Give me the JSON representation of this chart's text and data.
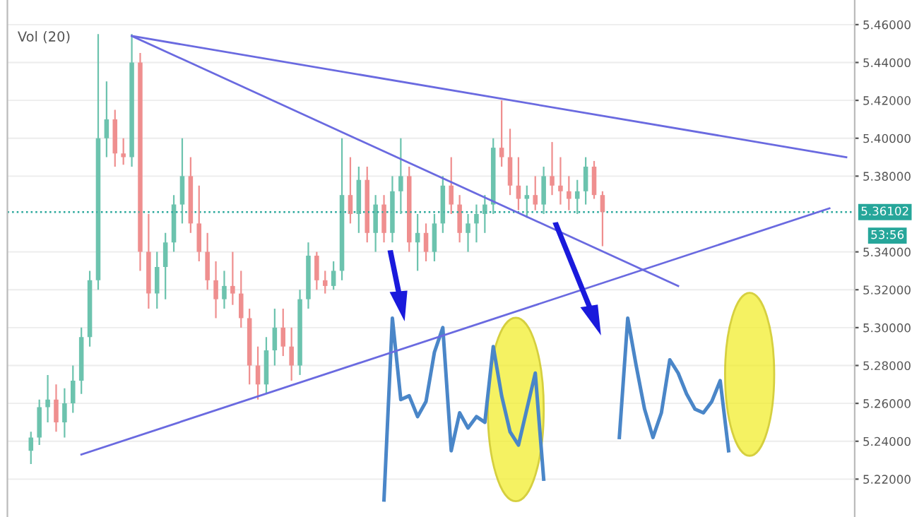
{
  "chart_data": {
    "type": "candlestick",
    "categories": [
      null,
      null,
      null,
      null,
      null,
      null,
      null,
      null,
      null,
      null,
      null,
      null,
      null,
      null,
      null,
      null,
      null,
      null,
      null,
      null,
      null,
      null,
      null,
      null,
      null,
      null,
      null,
      null,
      null,
      null,
      null,
      null,
      null,
      null,
      null,
      null,
      null,
      null,
      null,
      null,
      null,
      null,
      null,
      null,
      null,
      null,
      null,
      null,
      null,
      null,
      null,
      null,
      null,
      null,
      null,
      null,
      null,
      null,
      null,
      null,
      null,
      null,
      null,
      null,
      null,
      null,
      null,
      null,
      null,
      null,
      null,
      null,
      null,
      null,
      null,
      null,
      null,
      null,
      null,
      null,
      null,
      null,
      null,
      null,
      null,
      null,
      null,
      null,
      null,
      null,
      null,
      null,
      null,
      null,
      null,
      null,
      null,
      null,
      null
    ],
    "ohlc": [
      [
        5.235,
        5.245,
        5.228,
        5.242
      ],
      [
        5.242,
        5.262,
        5.238,
        5.258
      ],
      [
        5.258,
        5.275,
        5.25,
        5.262
      ],
      [
        5.262,
        5.27,
        5.245,
        5.25
      ],
      [
        5.25,
        5.268,
        5.242,
        5.26
      ],
      [
        5.26,
        5.28,
        5.255,
        5.272
      ],
      [
        5.272,
        5.3,
        5.265,
        5.295
      ],
      [
        5.295,
        5.33,
        5.29,
        5.325
      ],
      [
        5.325,
        5.455,
        5.32,
        5.4
      ],
      [
        5.4,
        5.43,
        5.39,
        5.41
      ],
      [
        5.41,
        5.415,
        5.385,
        5.392
      ],
      [
        5.392,
        5.4,
        5.386,
        5.39
      ],
      [
        5.39,
        5.455,
        5.385,
        5.44
      ],
      [
        5.44,
        5.445,
        5.33,
        5.34
      ],
      [
        5.34,
        5.36,
        5.31,
        5.318
      ],
      [
        5.318,
        5.34,
        5.31,
        5.332
      ],
      [
        5.332,
        5.35,
        5.315,
        5.345
      ],
      [
        5.345,
        5.37,
        5.34,
        5.365
      ],
      [
        5.365,
        5.4,
        5.355,
        5.38
      ],
      [
        5.38,
        5.39,
        5.35,
        5.355
      ],
      [
        5.355,
        5.375,
        5.335,
        5.34
      ],
      [
        5.34,
        5.35,
        5.32,
        5.325
      ],
      [
        5.325,
        5.335,
        5.305,
        5.315
      ],
      [
        5.315,
        5.33,
        5.31,
        5.322
      ],
      [
        5.322,
        5.34,
        5.312,
        5.318
      ],
      [
        5.318,
        5.33,
        5.3,
        5.305
      ],
      [
        5.305,
        5.31,
        5.27,
        5.28
      ],
      [
        5.28,
        5.29,
        5.262,
        5.27
      ],
      [
        5.27,
        5.295,
        5.265,
        5.288
      ],
      [
        5.288,
        5.31,
        5.28,
        5.3
      ],
      [
        5.3,
        5.31,
        5.285,
        5.29
      ],
      [
        5.29,
        5.3,
        5.272,
        5.28
      ],
      [
        5.28,
        5.32,
        5.275,
        5.315
      ],
      [
        5.315,
        5.345,
        5.31,
        5.338
      ],
      [
        5.338,
        5.34,
        5.32,
        5.325
      ],
      [
        5.325,
        5.33,
        5.318,
        5.322
      ],
      [
        5.322,
        5.335,
        5.32,
        5.33
      ],
      [
        5.33,
        5.4,
        5.325,
        5.37
      ],
      [
        5.37,
        5.39,
        5.355,
        5.36
      ],
      [
        5.36,
        5.385,
        5.35,
        5.378
      ],
      [
        5.378,
        5.385,
        5.345,
        5.35
      ],
      [
        5.35,
        5.37,
        5.34,
        5.365
      ],
      [
        5.365,
        5.37,
        5.345,
        5.35
      ],
      [
        5.35,
        5.38,
        5.345,
        5.372
      ],
      [
        5.372,
        5.4,
        5.36,
        5.38
      ],
      [
        5.38,
        5.385,
        5.34,
        5.345
      ],
      [
        5.345,
        5.36,
        5.33,
        5.35
      ],
      [
        5.35,
        5.355,
        5.335,
        5.34
      ],
      [
        5.34,
        5.36,
        5.335,
        5.355
      ],
      [
        5.355,
        5.38,
        5.35,
        5.375
      ],
      [
        5.375,
        5.39,
        5.36,
        5.365
      ],
      [
        5.365,
        5.37,
        5.345,
        5.35
      ],
      [
        5.35,
        5.36,
        5.34,
        5.355
      ],
      [
        5.355,
        5.365,
        5.345,
        5.36
      ],
      [
        5.36,
        5.37,
        5.35,
        5.365
      ],
      [
        5.365,
        5.4,
        5.36,
        5.395
      ],
      [
        5.395,
        5.42,
        5.385,
        5.39
      ],
      [
        5.39,
        5.405,
        5.37,
        5.375
      ],
      [
        5.375,
        5.39,
        5.362,
        5.368
      ],
      [
        5.368,
        5.375,
        5.358,
        5.37
      ],
      [
        5.37,
        5.38,
        5.362,
        5.365
      ],
      [
        5.365,
        5.385,
        5.36,
        5.38
      ],
      [
        5.38,
        5.398,
        5.37,
        5.375
      ],
      [
        5.375,
        5.39,
        5.365,
        5.372
      ],
      [
        5.372,
        5.38,
        5.362,
        5.368
      ],
      [
        5.368,
        5.378,
        5.36,
        5.372
      ],
      [
        5.372,
        5.39,
        5.365,
        5.385
      ],
      [
        5.385,
        5.388,
        5.368,
        5.37
      ],
      [
        5.37,
        5.372,
        5.343,
        5.361
      ],
      null,
      null,
      null,
      null,
      null,
      null,
      null,
      null,
      null,
      null,
      null,
      null,
      null,
      null,
      null,
      null,
      null,
      null,
      null,
      null,
      null,
      null,
      null,
      null,
      null,
      null,
      null,
      null,
      null,
      null
    ],
    "series": [
      {
        "type": "line",
        "color": "#4a86c8",
        "values": [
          null,
          null,
          null,
          null,
          null,
          null,
          null,
          null,
          null,
          null,
          null,
          null,
          null,
          null,
          null,
          null,
          null,
          null,
          null,
          null,
          null,
          null,
          null,
          null,
          null,
          null,
          null,
          null,
          null,
          null,
          null,
          null,
          null,
          null,
          null,
          null,
          null,
          null,
          null,
          null,
          null,
          null,
          5.209,
          5.305,
          5.262,
          5.264,
          5.253,
          5.261,
          5.287,
          5.3,
          5.235,
          5.255,
          5.247,
          5.253,
          5.25,
          5.29,
          5.264,
          5.245,
          5.238,
          5.257,
          5.276,
          5.22,
          null,
          null,
          null,
          null,
          null,
          null,
          null,
          null,
          null,
          null,
          null,
          null,
          null,
          null,
          null,
          null,
          null,
          null,
          null,
          null,
          null,
          null,
          null,
          null,
          null,
          null,
          null,
          null,
          null,
          null,
          null,
          null,
          null,
          null,
          null,
          null,
          null
        ]
      },
      {
        "type": "line",
        "color": "#4a86c8",
        "values": [
          null,
          null,
          null,
          null,
          null,
          null,
          null,
          null,
          null,
          null,
          null,
          null,
          null,
          null,
          null,
          null,
          null,
          null,
          null,
          null,
          null,
          null,
          null,
          null,
          null,
          null,
          null,
          null,
          null,
          null,
          null,
          null,
          null,
          null,
          null,
          null,
          null,
          null,
          null,
          null,
          null,
          null,
          null,
          null,
          null,
          null,
          null,
          null,
          null,
          null,
          null,
          null,
          null,
          null,
          null,
          null,
          null,
          null,
          null,
          null,
          null,
          null,
          null,
          null,
          null,
          null,
          null,
          null,
          null,
          null,
          5.242,
          5.305,
          5.28,
          5.257,
          5.242,
          5.255,
          5.283,
          5.276,
          5.265,
          5.257,
          5.255,
          5.261,
          5.272,
          5.235,
          null,
          null,
          null,
          null,
          null,
          null,
          null,
          null,
          null,
          null,
          null,
          null,
          null,
          null,
          null
        ]
      },
      {
        "type": "line",
        "color": "#6a6ae0",
        "values": [
          null,
          null,
          null,
          null,
          null,
          null,
          null,
          null,
          null,
          null,
          null,
          null,
          5.454,
          null,
          null,
          null,
          null,
          null,
          null,
          null,
          null,
          null,
          null,
          null,
          null,
          null,
          null,
          null,
          null,
          null,
          null,
          null,
          null,
          null,
          null,
          null,
          null,
          null,
          null,
          null,
          null,
          null,
          null,
          null,
          null,
          null,
          null,
          null,
          null,
          null,
          null,
          null,
          null,
          null,
          null,
          null,
          null,
          null,
          null,
          null,
          null,
          null,
          null,
          null,
          null,
          null,
          null,
          null,
          null,
          null,
          null,
          null,
          null,
          null,
          null,
          null,
          null,
          null,
          null,
          null,
          null,
          null,
          null,
          null,
          null,
          null,
          null,
          null,
          null,
          null,
          null,
          null,
          null,
          null,
          null,
          null,
          null,
          5.39,
          null
        ]
      },
      {
        "type": "line",
        "color": "#6a6ae0",
        "values": [
          null,
          null,
          null,
          null,
          null,
          null,
          null,
          null,
          null,
          null,
          null,
          null,
          5.454,
          null,
          null,
          null,
          null,
          null,
          null,
          null,
          null,
          null,
          null,
          null,
          null,
          null,
          null,
          null,
          null,
          null,
          null,
          null,
          null,
          null,
          null,
          null,
          null,
          null,
          null,
          null,
          null,
          null,
          null,
          null,
          null,
          null,
          null,
          null,
          null,
          null,
          null,
          null,
          null,
          null,
          null,
          null,
          null,
          null,
          null,
          null,
          null,
          null,
          null,
          null,
          null,
          null,
          null,
          null,
          null,
          null,
          null,
          null,
          null,
          null,
          null,
          null,
          null,
          5.322,
          null,
          null,
          null,
          null,
          null,
          null,
          null,
          null,
          null,
          null,
          null,
          null,
          null,
          null,
          null,
          null,
          null,
          null,
          null,
          null,
          null
        ]
      },
      {
        "type": "line",
        "color": "#6a6ae0",
        "values": [
          null,
          null,
          null,
          null,
          null,
          null,
          5.233,
          null,
          null,
          null,
          null,
          null,
          null,
          null,
          null,
          null,
          null,
          null,
          null,
          null,
          null,
          null,
          null,
          null,
          null,
          null,
          null,
          null,
          null,
          null,
          null,
          null,
          null,
          null,
          null,
          null,
          null,
          null,
          null,
          null,
          null,
          null,
          null,
          null,
          null,
          null,
          null,
          null,
          null,
          null,
          null,
          null,
          null,
          null,
          null,
          null,
          null,
          null,
          null,
          null,
          null,
          null,
          null,
          null,
          null,
          null,
          null,
          null,
          null,
          null,
          null,
          null,
          null,
          null,
          null,
          null,
          null,
          null,
          null,
          null,
          null,
          null,
          null,
          null,
          null,
          null,
          null,
          null,
          null,
          null,
          null,
          null,
          null,
          null,
          null,
          5.363,
          null,
          null,
          null
        ]
      }
    ],
    "ylim": [
      5.2,
      5.473
    ],
    "yticks": [
      {
        "value": 5.22,
        "label": "5.22000"
      },
      {
        "value": 5.24,
        "label": "5.24000"
      },
      {
        "value": 5.26,
        "label": "5.26000"
      },
      {
        "value": 5.28,
        "label": "5.28000"
      },
      {
        "value": 5.3,
        "label": "5.30000"
      },
      {
        "value": 5.32,
        "label": "5.32000"
      },
      {
        "value": 5.34,
        "label": "5.34000"
      },
      {
        "value": 5.38,
        "label": "5.38000"
      },
      {
        "value": 5.4,
        "label": "5.40000"
      },
      {
        "value": 5.42,
        "label": "5.42000"
      },
      {
        "value": 5.44,
        "label": "5.44000"
      },
      {
        "value": 5.46,
        "label": "5.46000"
      }
    ],
    "ref_lines": [
      {
        "axis": "y",
        "value": 5.36102,
        "label": "5.36102",
        "color": "#26a69a",
        "line_style": "dotted"
      }
    ],
    "annotations": [
      "Vol (20)",
      "53:56"
    ],
    "grid": "y",
    "tick_labels": "y"
  }
}
